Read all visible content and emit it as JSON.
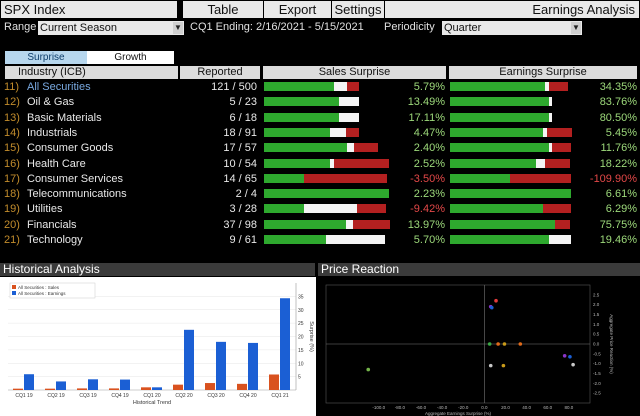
{
  "topbar": {
    "title": "SPX Index",
    "buttons": [
      "Table",
      "Export",
      "Settings"
    ],
    "app_title": "Earnings Analysis"
  },
  "filters": {
    "range_label": "Range",
    "range_value": "Current Season",
    "period_label": "CQ1 Ending: 2/16/2021 - 5/15/2021",
    "periodicity_label": "Periodicity",
    "periodicity_value": "Quarter"
  },
  "tabs": {
    "surprise": "Surprise",
    "growth": "Growth"
  },
  "table": {
    "headers": {
      "industry": "Industry (ICB)",
      "reported": "Reported",
      "sales": "Sales Surprise",
      "earnings": "Earnings Surprise"
    },
    "rows": [
      {
        "num": "11)",
        "name": "All Securities",
        "reported": "121 / 500",
        "sales": "5.79%",
        "sales_neg": false,
        "earn": "34.35%",
        "earn_neg": false,
        "sales_bar": {
          "green": 0.53,
          "white": 0.1,
          "red": 0.09
        },
        "earn_bar": {
          "green": 0.75,
          "white": 0.03,
          "red": 0.15
        }
      },
      {
        "num": "12)",
        "name": "Oil & Gas",
        "reported": "5 / 23",
        "sales": "13.49%",
        "sales_neg": false,
        "earn": "83.76%",
        "earn_neg": false,
        "sales_bar": {
          "green": 0.57,
          "white": 0.15,
          "red": 0.0
        },
        "earn_bar": {
          "green": 0.78,
          "white": 0.02,
          "red": 0.0
        }
      },
      {
        "num": "13)",
        "name": "Basic Materials",
        "reported": "6 / 18",
        "sales": "17.11%",
        "sales_neg": false,
        "earn": "80.50%",
        "earn_neg": false,
        "sales_bar": {
          "green": 0.57,
          "white": 0.15,
          "red": 0.0
        },
        "earn_bar": {
          "green": 0.78,
          "white": 0.02,
          "red": 0.0
        }
      },
      {
        "num": "14)",
        "name": "Industrials",
        "reported": "18 / 91",
        "sales": "4.47%",
        "sales_neg": false,
        "earn": "5.45%",
        "earn_neg": false,
        "sales_bar": {
          "green": 0.5,
          "white": 0.12,
          "red": 0.1
        },
        "earn_bar": {
          "green": 0.73,
          "white": 0.03,
          "red": 0.2
        }
      },
      {
        "num": "15)",
        "name": "Consumer Goods",
        "reported": "17 / 57",
        "sales": "2.40%",
        "sales_neg": false,
        "earn": "11.76%",
        "earn_neg": false,
        "sales_bar": {
          "green": 0.63,
          "white": 0.05,
          "red": 0.18
        },
        "earn_bar": {
          "green": 0.78,
          "white": 0.02,
          "red": 0.15
        }
      },
      {
        "num": "16)",
        "name": "Health Care",
        "reported": "10 / 54",
        "sales": "2.52%",
        "sales_neg": false,
        "earn": "18.22%",
        "earn_neg": false,
        "sales_bar": {
          "green": 0.5,
          "white": 0.03,
          "red": 0.42
        },
        "earn_bar": {
          "green": 0.68,
          "white": 0.07,
          "red": 0.2
        }
      },
      {
        "num": "17)",
        "name": "Consumer Services",
        "reported": "14 / 65",
        "sales": "-3.50%",
        "sales_neg": true,
        "earn": "-109.90%",
        "earn_neg": true,
        "sales_bar": {
          "green": 0.3,
          "white": 0.0,
          "red": 0.63
        },
        "earn_bar": {
          "green": 0.47,
          "white": 0.0,
          "red": 0.48
        }
      },
      {
        "num": "18)",
        "name": "Telecommunications",
        "reported": "2 / 4",
        "sales": "2.23%",
        "sales_neg": false,
        "earn": "6.61%",
        "earn_neg": false,
        "sales_bar": {
          "green": 0.95,
          "white": 0.0,
          "red": 0.0
        },
        "earn_bar": {
          "green": 0.95,
          "white": 0.0,
          "red": 0.0
        }
      },
      {
        "num": "19)",
        "name": "Utilities",
        "reported": "3 / 28",
        "sales": "-9.42%",
        "sales_neg": true,
        "earn": "6.29%",
        "earn_neg": false,
        "sales_bar": {
          "green": 0.3,
          "white": 0.4,
          "red": 0.22
        },
        "earn_bar": {
          "green": 0.73,
          "white": 0.0,
          "red": 0.22
        }
      },
      {
        "num": "20)",
        "name": "Financials",
        "reported": "37 / 98",
        "sales": "13.97%",
        "sales_neg": false,
        "earn": "75.75%",
        "earn_neg": false,
        "sales_bar": {
          "green": 0.62,
          "white": 0.05,
          "red": 0.28
        },
        "earn_bar": {
          "green": 0.83,
          "white": 0.0,
          "red": 0.12
        }
      },
      {
        "num": "21)",
        "name": "Technology",
        "reported": "9 / 61",
        "sales": "5.70%",
        "sales_neg": false,
        "earn": "19.46%",
        "earn_neg": false,
        "sales_bar": {
          "green": 0.47,
          "white": 0.45,
          "red": 0.0
        },
        "earn_bar": {
          "green": 0.78,
          "white": 0.17,
          "red": 0.0
        }
      }
    ]
  },
  "panels": {
    "historical_title": "Historical Analysis",
    "price_title": "Price Reaction"
  },
  "chart_data": [
    {
      "type": "bar",
      "categories": [
        "CQ1 19",
        "CQ2 19",
        "CQ3 19",
        "CQ4 19",
        "CQ1 20",
        "CQ2 20",
        "CQ3 20",
        "CQ4 20",
        "CQ1 21"
      ],
      "series": [
        {
          "name": "All Securities : Sales",
          "color": "#d9521f",
          "values": [
            0.5,
            0.5,
            0.6,
            0.6,
            1.0,
            2.0,
            2.6,
            2.3,
            5.8
          ]
        },
        {
          "name": "All Securities : Earnings",
          "color": "#1b5fd4",
          "values": [
            5.9,
            3.2,
            4.0,
            3.9,
            1.0,
            22.5,
            18.0,
            17.6,
            34.3
          ]
        }
      ],
      "ylabel": "Surprise (%)",
      "xlabel": "Historical Trend",
      "ylim": [
        0,
        40
      ],
      "yticks": [
        5,
        10,
        15,
        20,
        25,
        30,
        35
      ],
      "grid": true,
      "legend": "top-left"
    },
    {
      "type": "scatter",
      "xlabel": "Aggregate Earnings Surprise (%)",
      "ylabel": "Aggregate Price Reaction (%)",
      "xlim": [
        -150,
        100
      ],
      "ylim": [
        -3,
        3
      ],
      "xticks": [
        -100,
        -80,
        -60,
        -40,
        -20,
        0,
        20,
        40,
        60,
        80
      ],
      "yticks": [
        -2.5,
        -2.0,
        -1.5,
        -1.0,
        -0.5,
        0.0,
        0.5,
        1.0,
        1.5,
        2.0,
        2.5
      ],
      "points": [
        {
          "x": -110,
          "y": -1.3,
          "color": "#74b44a"
        },
        {
          "x": 11,
          "y": 2.2,
          "color": "#e23b3b"
        },
        {
          "x": 6,
          "y": 1.9,
          "color": "#8a35c9"
        },
        {
          "x": 7,
          "y": 1.85,
          "color": "#1b5fd4"
        },
        {
          "x": 5,
          "y": 0.0,
          "color": "#3aa845"
        },
        {
          "x": 13,
          "y": 0.0,
          "color": "#e06a1a"
        },
        {
          "x": 19,
          "y": 0.0,
          "color": "#c99a1a"
        },
        {
          "x": 34,
          "y": 0.0,
          "color": "#e06a1a"
        },
        {
          "x": 76,
          "y": -0.6,
          "color": "#8a35c9"
        },
        {
          "x": 81,
          "y": -0.65,
          "color": "#1b5fd4"
        },
        {
          "x": 84,
          "y": -1.05,
          "color": "#c8c8c8"
        },
        {
          "x": 6,
          "y": -1.1,
          "color": "#c8c8c8"
        },
        {
          "x": 18,
          "y": -1.1,
          "color": "#c99a1a"
        }
      ],
      "grid": false
    }
  ]
}
